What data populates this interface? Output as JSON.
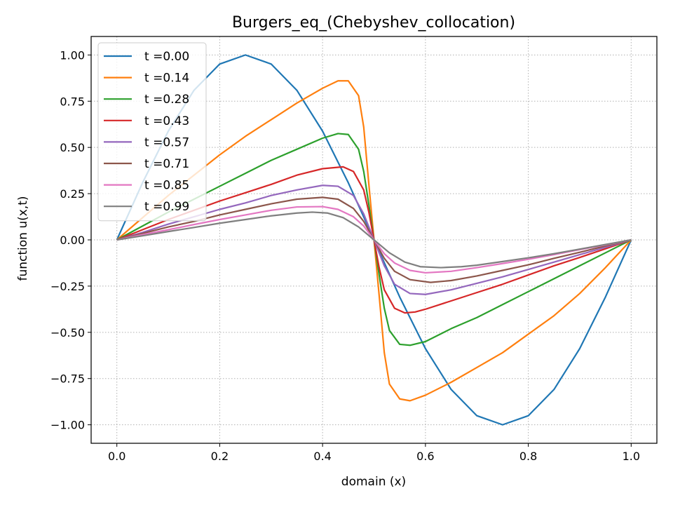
{
  "chart_data": {
    "type": "line",
    "title": "Burgers_eq_(Chebyshev_collocation)",
    "xlabel": "domain (x)",
    "ylabel": "function u(x,t)",
    "xlim": [
      -0.05,
      1.05
    ],
    "ylim": [
      -1.1,
      1.1
    ],
    "xticks": [
      0.0,
      0.2,
      0.4,
      0.6,
      0.8,
      1.0
    ],
    "xtick_labels": [
      "0.0",
      "0.2",
      "0.4",
      "0.6",
      "0.8",
      "1.0"
    ],
    "yticks": [
      -1.0,
      -0.75,
      -0.5,
      -0.25,
      0.0,
      0.25,
      0.5,
      0.75,
      1.0
    ],
    "ytick_labels": [
      "−1.00",
      "−0.75",
      "−0.50",
      "−0.25",
      "0.00",
      "0.25",
      "0.50",
      "0.75",
      "1.00"
    ],
    "grid": true,
    "grid_style": "dotted",
    "legend_position": "upper-left",
    "x": [
      0,
      0.05,
      0.1,
      0.15,
      0.2,
      0.25,
      0.3,
      0.35,
      0.4,
      0.45,
      0.5,
      0.55,
      0.6,
      0.65,
      0.7,
      0.75,
      0.8,
      0.85,
      0.9,
      0.95,
      1.0
    ],
    "series": [
      {
        "name": "t =0.00",
        "color": "#1f77b4",
        "x": [
          0,
          0.05,
          0.1,
          0.15,
          0.2,
          0.25,
          0.3,
          0.35,
          0.4,
          0.45,
          0.5,
          0.55,
          0.6,
          0.65,
          0.7,
          0.75,
          0.8,
          0.85,
          0.9,
          0.95,
          1.0
        ],
        "y": [
          0,
          0.309,
          0.588,
          0.809,
          0.951,
          1.0,
          0.951,
          0.809,
          0.588,
          0.309,
          0,
          -0.309,
          -0.588,
          -0.809,
          -0.951,
          -1.0,
          -0.951,
          -0.809,
          -0.588,
          -0.309,
          0
        ]
      },
      {
        "name": "t =0.14",
        "color": "#ff7f0e",
        "x": [
          0,
          0.05,
          0.1,
          0.15,
          0.2,
          0.25,
          0.3,
          0.35,
          0.4,
          0.43,
          0.45,
          0.47,
          0.48,
          0.49,
          0.5,
          0.51,
          0.52,
          0.53,
          0.55,
          0.57,
          0.6,
          0.65,
          0.7,
          0.75,
          0.8,
          0.85,
          0.9,
          0.95,
          1.0
        ],
        "y": [
          0,
          0.12,
          0.24,
          0.35,
          0.46,
          0.56,
          0.65,
          0.74,
          0.82,
          0.86,
          0.86,
          0.78,
          0.61,
          0.3,
          0,
          -0.3,
          -0.61,
          -0.78,
          -0.86,
          -0.87,
          -0.84,
          -0.77,
          -0.69,
          -0.61,
          -0.51,
          -0.41,
          -0.29,
          -0.15,
          0
        ]
      },
      {
        "name": "t =0.28",
        "color": "#2ca02c",
        "x": [
          0,
          0.05,
          0.1,
          0.15,
          0.2,
          0.25,
          0.3,
          0.35,
          0.4,
          0.43,
          0.45,
          0.47,
          0.48,
          0.49,
          0.5,
          0.51,
          0.52,
          0.53,
          0.55,
          0.57,
          0.6,
          0.65,
          0.7,
          0.75,
          0.8,
          0.85,
          0.9,
          0.95,
          1.0
        ],
        "y": [
          0,
          0.075,
          0.15,
          0.22,
          0.29,
          0.36,
          0.43,
          0.49,
          0.55,
          0.575,
          0.57,
          0.49,
          0.37,
          0.19,
          0,
          -0.19,
          -0.37,
          -0.49,
          -0.565,
          -0.57,
          -0.55,
          -0.48,
          -0.42,
          -0.35,
          -0.28,
          -0.21,
          -0.14,
          -0.07,
          0
        ]
      },
      {
        "name": "t =0.43",
        "color": "#d62728",
        "x": [
          0,
          0.05,
          0.1,
          0.15,
          0.2,
          0.25,
          0.3,
          0.35,
          0.4,
          0.44,
          0.46,
          0.48,
          0.49,
          0.5,
          0.51,
          0.52,
          0.54,
          0.56,
          0.58,
          0.6,
          0.65,
          0.7,
          0.75,
          0.8,
          0.85,
          0.9,
          0.95,
          1.0
        ],
        "y": [
          0,
          0.055,
          0.11,
          0.16,
          0.21,
          0.255,
          0.3,
          0.35,
          0.385,
          0.395,
          0.37,
          0.27,
          0.15,
          0,
          -0.15,
          -0.27,
          -0.37,
          -0.395,
          -0.39,
          -0.375,
          -0.33,
          -0.285,
          -0.24,
          -0.19,
          -0.14,
          -0.095,
          -0.048,
          0
        ]
      },
      {
        "name": "t =0.57",
        "color": "#9467bd",
        "x": [
          0,
          0.05,
          0.1,
          0.15,
          0.2,
          0.25,
          0.3,
          0.35,
          0.4,
          0.43,
          0.46,
          0.48,
          0.5,
          0.52,
          0.54,
          0.57,
          0.6,
          0.65,
          0.7,
          0.75,
          0.8,
          0.85,
          0.9,
          0.95,
          1.0
        ],
        "y": [
          0,
          0.04,
          0.085,
          0.125,
          0.165,
          0.2,
          0.24,
          0.27,
          0.295,
          0.29,
          0.24,
          0.14,
          0,
          -0.14,
          -0.24,
          -0.29,
          -0.295,
          -0.27,
          -0.235,
          -0.2,
          -0.16,
          -0.12,
          -0.08,
          -0.04,
          0
        ]
      },
      {
        "name": "t =0.71",
        "color": "#8c564b",
        "x": [
          0,
          0.05,
          0.1,
          0.15,
          0.2,
          0.25,
          0.3,
          0.35,
          0.4,
          0.43,
          0.46,
          0.48,
          0.5,
          0.52,
          0.54,
          0.57,
          0.61,
          0.65,
          0.7,
          0.75,
          0.8,
          0.85,
          0.9,
          0.95,
          1.0
        ],
        "y": [
          0,
          0.035,
          0.07,
          0.1,
          0.135,
          0.165,
          0.195,
          0.22,
          0.23,
          0.22,
          0.17,
          0.1,
          0,
          -0.1,
          -0.17,
          -0.215,
          -0.23,
          -0.22,
          -0.195,
          -0.165,
          -0.135,
          -0.1,
          -0.067,
          -0.033,
          0
        ]
      },
      {
        "name": "t =0.85",
        "color": "#e377c2",
        "x": [
          0,
          0.05,
          0.1,
          0.15,
          0.2,
          0.25,
          0.3,
          0.35,
          0.4,
          0.43,
          0.46,
          0.48,
          0.5,
          0.52,
          0.54,
          0.57,
          0.6,
          0.65,
          0.7,
          0.75,
          0.8,
          0.85,
          0.9,
          0.95,
          1.0
        ],
        "y": [
          0,
          0.028,
          0.055,
          0.083,
          0.11,
          0.135,
          0.16,
          0.178,
          0.18,
          0.165,
          0.125,
          0.075,
          0,
          -0.075,
          -0.125,
          -0.165,
          -0.178,
          -0.17,
          -0.15,
          -0.128,
          -0.105,
          -0.08,
          -0.053,
          -0.027,
          0
        ]
      },
      {
        "name": "t =0.99",
        "color": "#7f7f7f",
        "x": [
          0,
          0.05,
          0.1,
          0.15,
          0.2,
          0.25,
          0.3,
          0.35,
          0.38,
          0.41,
          0.44,
          0.47,
          0.5,
          0.53,
          0.56,
          0.59,
          0.63,
          0.67,
          0.7,
          0.75,
          0.8,
          0.85,
          0.9,
          0.95,
          1.0
        ],
        "y": [
          0,
          0.022,
          0.045,
          0.067,
          0.09,
          0.11,
          0.13,
          0.145,
          0.15,
          0.145,
          0.12,
          0.07,
          0,
          -0.07,
          -0.12,
          -0.145,
          -0.15,
          -0.145,
          -0.137,
          -0.117,
          -0.097,
          -0.075,
          -0.05,
          -0.025,
          0
        ]
      }
    ]
  }
}
